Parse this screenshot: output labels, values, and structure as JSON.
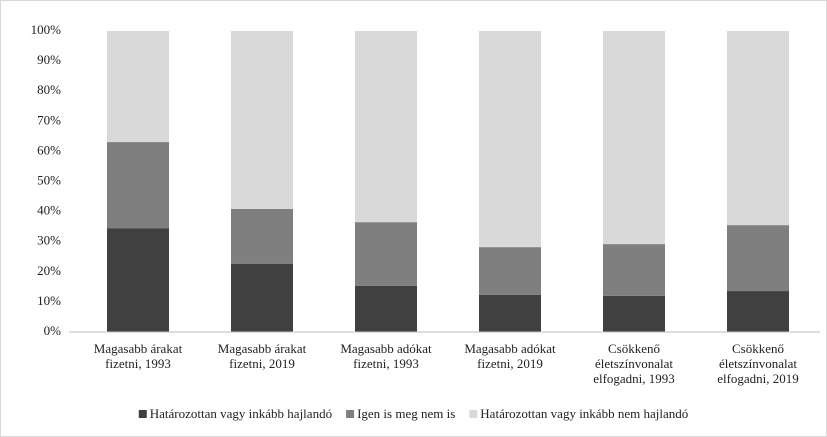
{
  "chart_data": {
    "type": "stacked_bar",
    "categories": [
      "Magasabb árakat fizetni, 1993",
      "Magasabb árakat fizetni, 2019",
      "Magasabb adókat fizetni, 1993",
      "Magasabb adókat fizetni, 2019",
      "Csökkenő életszínvonalat elfogadni, 1993",
      "Csökkenő életszínvonalat elfogadni, 2019"
    ],
    "series": [
      {
        "name": "Határozottan vagy inkább hajlandó",
        "color": "#404040",
        "values": [
          34.5,
          22.6,
          15.3,
          12.3,
          12.0,
          13.6
        ]
      },
      {
        "name": "Igen is meg nem is",
        "color": "#7f7f7f",
        "values": [
          28.6,
          18.3,
          21.2,
          15.9,
          17.2,
          21.9
        ]
      },
      {
        "name": "Határozottan vagy inkább nem hajlandó",
        "color": "#d9d9d9",
        "values": [
          36.9,
          59.1,
          63.5,
          71.8,
          70.8,
          64.5
        ]
      }
    ],
    "ylim": [
      0,
      100
    ],
    "yticks": [
      {
        "value": 0,
        "label": "0%"
      },
      {
        "value": 10,
        "label": "10%"
      },
      {
        "value": 20,
        "label": "20%"
      },
      {
        "value": 30,
        "label": "30%"
      },
      {
        "value": 40,
        "label": "40%"
      },
      {
        "value": 50,
        "label": "50%"
      },
      {
        "value": 60,
        "label": "60%"
      },
      {
        "value": 70,
        "label": "70%"
      },
      {
        "value": 80,
        "label": "80%"
      },
      {
        "value": 90,
        "label": "90%"
      },
      {
        "value": 100,
        "label": "100%"
      }
    ],
    "legend": "bottom"
  }
}
